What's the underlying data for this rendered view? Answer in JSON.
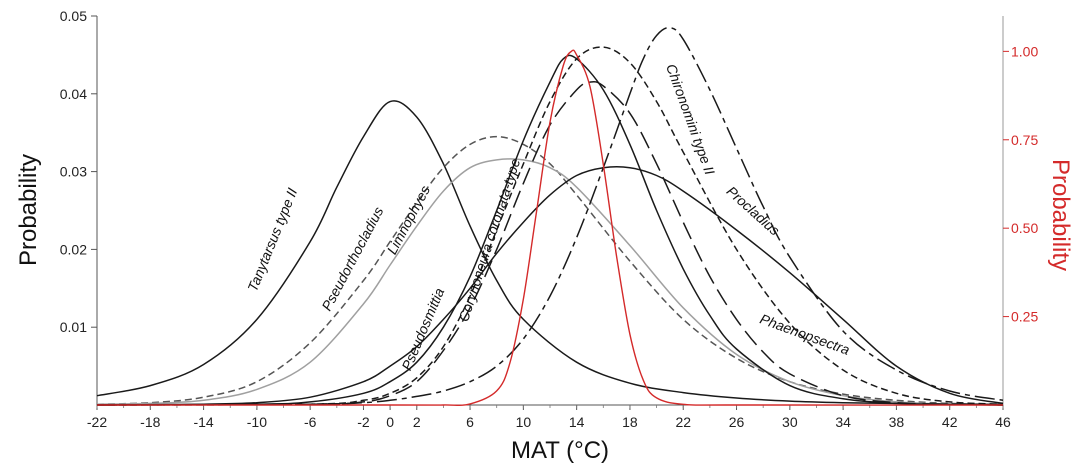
{
  "chart_data": {
    "type": "line",
    "title": "",
    "xlabel": "MAT (°C)",
    "ylabel": "Probability",
    "y2label": "Probability",
    "xlim": [
      -22,
      46
    ],
    "ylim": [
      0,
      0.05
    ],
    "y2lim": [
      0,
      1.1
    ],
    "grid": false,
    "x_ticks": [
      -22,
      -18,
      -14,
      -10,
      -6,
      -2,
      0,
      2,
      6,
      10,
      14,
      18,
      22,
      26,
      30,
      34,
      38,
      42,
      46
    ],
    "y_ticks": [
      "0.01",
      "0.02",
      "0.03",
      "0.04",
      "0.05"
    ],
    "y2_ticks": [
      "0.25",
      "0.50",
      "0.75",
      "1.00"
    ],
    "series": [
      {
        "name": "Tanytarsus type II",
        "axis": "left",
        "style": "solid",
        "color": "#1a1a1a",
        "x": [
          -22,
          -18,
          -14,
          -10,
          -6,
          -4,
          -2,
          0,
          2,
          4,
          6,
          8,
          10,
          14,
          18,
          22,
          26,
          30,
          34,
          38,
          42,
          46
        ],
        "y": [
          0.0012,
          0.0025,
          0.0052,
          0.011,
          0.021,
          0.028,
          0.0345,
          0.039,
          0.037,
          0.031,
          0.023,
          0.016,
          0.011,
          0.0055,
          0.0028,
          0.0016,
          0.0009,
          0.0005,
          0.0003,
          0.0002,
          0.0001,
          0.0
        ]
      },
      {
        "name": "Pseudorthocladius",
        "axis": "left",
        "style": "short-dash",
        "color": "#555555",
        "x": [
          -22,
          -18,
          -14,
          -10,
          -6,
          -2,
          0,
          2,
          4,
          6,
          8,
          10,
          12,
          14,
          18,
          22,
          26,
          30,
          34,
          38,
          42,
          46
        ],
        "y": [
          0.0001,
          0.0003,
          0.001,
          0.003,
          0.008,
          0.016,
          0.021,
          0.026,
          0.0305,
          0.0335,
          0.0345,
          0.0335,
          0.031,
          0.027,
          0.0185,
          0.011,
          0.006,
          0.003,
          0.0014,
          0.0006,
          0.0002,
          0.0001
        ]
      },
      {
        "name": "Limnophyes",
        "axis": "left",
        "style": "solid",
        "color": "#a0a0a0",
        "x": [
          -22,
          -18,
          -14,
          -10,
          -6,
          -2,
          0,
          2,
          4,
          6,
          8,
          10,
          12,
          14,
          18,
          22,
          26,
          30,
          34,
          38,
          42,
          46
        ],
        "y": [
          0.0001,
          0.0002,
          0.0006,
          0.002,
          0.0055,
          0.013,
          0.018,
          0.023,
          0.0275,
          0.0305,
          0.0315,
          0.0315,
          0.0305,
          0.028,
          0.0205,
          0.0125,
          0.0065,
          0.003,
          0.0012,
          0.0004,
          0.0001,
          0.0
        ]
      },
      {
        "name": "Pseudosmittia",
        "axis": "left",
        "style": "solid",
        "color": "#1a1a1a",
        "x": [
          -22,
          -10,
          -6,
          -2,
          0,
          2,
          4,
          6,
          8,
          10,
          12,
          13,
          14,
          16,
          18,
          20,
          22,
          24,
          26,
          30,
          34,
          38,
          42,
          46
        ],
        "y": [
          0.0,
          0.0001,
          0.0004,
          0.0015,
          0.003,
          0.0055,
          0.01,
          0.0165,
          0.025,
          0.034,
          0.0415,
          0.0445,
          0.0445,
          0.0405,
          0.0335,
          0.025,
          0.0175,
          0.0115,
          0.0072,
          0.0025,
          0.0008,
          0.0002,
          0.0001,
          0.0
        ]
      },
      {
        "name": "Corynoneura coronata-type",
        "axis": "left",
        "style": "long-dash",
        "color": "#1a1a1a",
        "x": [
          -22,
          -6,
          -2,
          0,
          2,
          4,
          6,
          8,
          10,
          12,
          14,
          15,
          16,
          18,
          20,
          22,
          24,
          26,
          28,
          30,
          34,
          38,
          42,
          46
        ],
        "y": [
          0.0,
          0.0001,
          0.0004,
          0.0012,
          0.003,
          0.007,
          0.0125,
          0.02,
          0.0285,
          0.036,
          0.0405,
          0.0415,
          0.041,
          0.0375,
          0.031,
          0.0235,
          0.0165,
          0.011,
          0.0068,
          0.004,
          0.0012,
          0.0003,
          0.0001,
          0.0
        ]
      },
      {
        "name": "Procladius",
        "axis": "left",
        "style": "solid",
        "color": "#1a1a1a",
        "x": [
          -22,
          -14,
          -10,
          -6,
          -2,
          0,
          2,
          4,
          6,
          8,
          10,
          12,
          14,
          16,
          18,
          20,
          22,
          26,
          30,
          34,
          38,
          42,
          46
        ],
        "y": [
          0.0,
          0.0001,
          0.0003,
          0.001,
          0.003,
          0.005,
          0.0075,
          0.011,
          0.015,
          0.0195,
          0.0235,
          0.027,
          0.0295,
          0.0305,
          0.0305,
          0.0295,
          0.0275,
          0.0225,
          0.017,
          0.011,
          0.005,
          0.0015,
          0.0002
        ]
      },
      {
        "name": "Phaenopsectra",
        "axis": "left",
        "style": "short-dash",
        "color": "#1a1a1a",
        "x": [
          -22,
          -6,
          -2,
          0,
          2,
          4,
          6,
          8,
          10,
          12,
          14,
          16,
          18,
          20,
          22,
          26,
          30,
          34,
          38,
          42,
          46
        ],
        "y": [
          0.0,
          0.0001,
          0.0006,
          0.0015,
          0.0035,
          0.0075,
          0.014,
          0.0225,
          0.031,
          0.039,
          0.0445,
          0.046,
          0.044,
          0.039,
          0.0325,
          0.02,
          0.0105,
          0.0045,
          0.0015,
          0.0004,
          0.0001
        ]
      },
      {
        "name": "Chironomini type II",
        "axis": "left",
        "style": "long-short-dash",
        "color": "#1a1a1a",
        "x": [
          -22,
          -6,
          -2,
          0,
          2,
          4,
          6,
          8,
          10,
          12,
          14,
          16,
          18,
          19,
          20,
          21,
          22,
          24,
          26,
          28,
          30,
          34,
          38,
          42,
          46
        ],
        "y": [
          0.0,
          0.0001,
          0.0003,
          0.0006,
          0.0011,
          0.0018,
          0.003,
          0.005,
          0.0085,
          0.014,
          0.0215,
          0.0305,
          0.04,
          0.0445,
          0.0475,
          0.0485,
          0.047,
          0.0405,
          0.033,
          0.0255,
          0.019,
          0.0095,
          0.0045,
          0.0018,
          0.0006
        ]
      },
      {
        "name": "",
        "axis": "right",
        "style": "solid",
        "color": "#d42a2a",
        "x": [
          -22,
          0,
          4,
          6,
          8,
          9,
          10,
          11,
          12,
          13,
          13.6,
          14,
          15,
          16,
          17,
          18,
          19,
          20,
          22,
          26,
          46
        ],
        "y": [
          0.0,
          0.0,
          0.0,
          0.003,
          0.04,
          0.12,
          0.3,
          0.55,
          0.8,
          0.96,
          1.0,
          0.99,
          0.9,
          0.68,
          0.42,
          0.2,
          0.07,
          0.02,
          0.002,
          0.0,
          0.0
        ]
      }
    ],
    "labels": [
      {
        "text": "Tanytarsus type II",
        "x": -8.5,
        "y": 0.021,
        "angle": -68
      },
      {
        "text": "Pseudorthocladius",
        "x": -2.5,
        "y": 0.0185,
        "angle": -62
      },
      {
        "text": "Limnophyes",
        "x": 1.7,
        "y": 0.0235,
        "angle": -62
      },
      {
        "text": "Pseudosmittia",
        "x": 2.8,
        "y": 0.0095,
        "angle": -67
      },
      {
        "text": "Corynoneura coronata-type",
        "x": 7.8,
        "y": 0.021,
        "angle": -72
      },
      {
        "text": "Chironomini type II",
        "x": 22.2,
        "y": 0.0365,
        "angle": 70
      },
      {
        "text": "Procladius",
        "x": 27,
        "y": 0.0245,
        "angle": 42
      },
      {
        "text": "Phaenopsectra",
        "x": 31,
        "y": 0.0085,
        "angle": 20
      }
    ]
  }
}
